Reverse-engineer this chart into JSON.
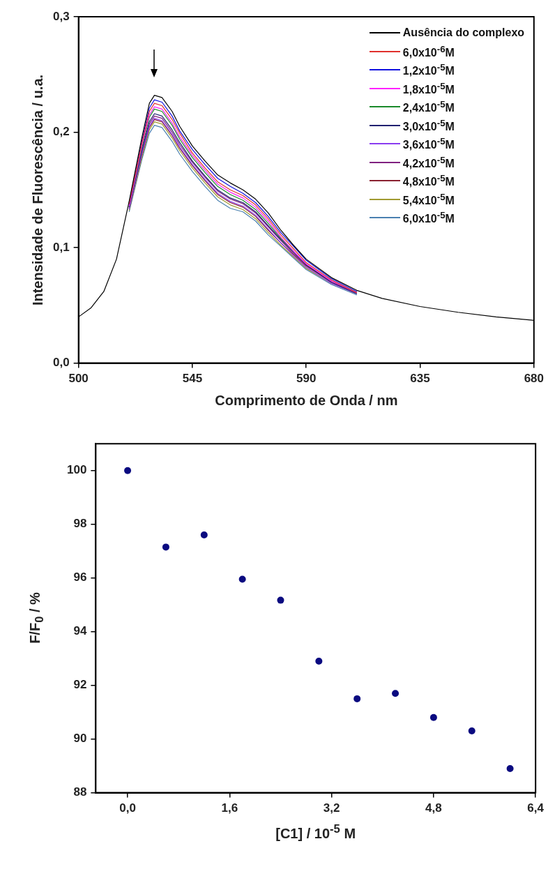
{
  "chart_data": [
    {
      "type": "line",
      "xlabel": "Comprimento de Onda / nm",
      "ylabel": "Intensidade de Fluorescência / u.a.",
      "xlim": [
        500,
        680
      ],
      "xticks": [
        500,
        545,
        590,
        635,
        680
      ],
      "ylim": [
        0,
        0.3
      ],
      "yticks": [
        {
          "value": 0,
          "label": "0,0"
        },
        {
          "value": 0.1,
          "label": "0,1"
        },
        {
          "value": 0.2,
          "label": "0,2"
        },
        {
          "value": 0.3,
          "label": "0,3"
        }
      ],
      "legend": "top right",
      "marker": "none",
      "line_style": "solid",
      "grid": false,
      "x": [
        500,
        505,
        510,
        515,
        520,
        525,
        528,
        530,
        533,
        537,
        540,
        545,
        550,
        555,
        560,
        565,
        570,
        575,
        580,
        585,
        590,
        600,
        610,
        620,
        635,
        650,
        665,
        680
      ],
      "series": [
        {
          "name": "Ausência do complexo",
          "color": "#000000",
          "values": [
            0.04,
            0.048,
            0.062,
            0.09,
            0.14,
            0.195,
            0.225,
            0.232,
            0.23,
            0.218,
            0.205,
            0.188,
            0.175,
            0.163,
            0.156,
            0.15,
            0.142,
            0.13,
            0.115,
            0.102,
            0.09,
            0.074,
            0.063,
            0.056,
            0.049,
            0.044,
            0.04,
            0.037
          ]
        },
        {
          "name": "6,0x10$^{-6}$M",
          "color": "#e0302c",
          "values": [
            null,
            null,
            null,
            null,
            0.138,
            0.19,
            0.218,
            0.225,
            0.223,
            0.211,
            0.199,
            0.182,
            0.169,
            0.157,
            0.15,
            0.145,
            0.137,
            0.125,
            0.111,
            0.099,
            0.087,
            0.072,
            0.061,
            null,
            null,
            null,
            null,
            null
          ]
        },
        {
          "name": "1,2x10$^{-5}$M",
          "color": "#1010e0",
          "values": [
            null,
            null,
            null,
            null,
            0.139,
            0.192,
            0.221,
            0.228,
            0.226,
            0.214,
            0.201,
            0.185,
            0.172,
            0.16,
            0.153,
            0.147,
            0.139,
            0.127,
            0.113,
            0.101,
            0.089,
            0.073,
            0.062,
            null,
            null,
            null,
            null,
            null
          ]
        },
        {
          "name": "1,8x10$^{-5}$M",
          "color": "#ff20ff",
          "values": [
            null,
            null,
            null,
            null,
            0.136,
            0.188,
            0.215,
            0.222,
            0.22,
            0.208,
            0.196,
            0.18,
            0.167,
            0.155,
            0.148,
            0.143,
            0.135,
            0.123,
            0.109,
            0.097,
            0.086,
            0.071,
            0.061,
            null,
            null,
            null,
            null,
            null
          ]
        },
        {
          "name": "2,4x10$^{-5}$M",
          "color": "#1a8a2a",
          "values": [
            null,
            null,
            null,
            null,
            0.136,
            0.186,
            0.213,
            0.22,
            0.218,
            0.206,
            0.194,
            0.178,
            0.165,
            0.153,
            0.146,
            0.141,
            0.133,
            0.121,
            0.108,
            0.097,
            null,
            null,
            null,
            null,
            null,
            null,
            null,
            null
          ]
        },
        {
          "name": "3,0x10$^{-5}$M",
          "color": "#202070",
          "values": [
            null,
            null,
            null,
            null,
            0.135,
            0.184,
            0.209,
            0.216,
            0.214,
            0.202,
            0.191,
            0.175,
            0.162,
            0.15,
            0.143,
            0.139,
            0.131,
            0.119,
            0.107,
            0.096,
            0.085,
            0.07,
            0.06,
            null,
            null,
            null,
            null,
            null
          ]
        },
        {
          "name": "3,6x10$^{-5}$M",
          "color": "#8a3cf0",
          "values": [
            null,
            null,
            null,
            null,
            0.133,
            0.181,
            0.205,
            0.212,
            0.21,
            0.198,
            0.187,
            0.172,
            0.159,
            0.147,
            0.14,
            0.136,
            0.128,
            0.116,
            0.104,
            0.093,
            0.083,
            0.069,
            0.06,
            null,
            null,
            null,
            null,
            null
          ]
        },
        {
          "name": "4,2x10$^{-5}$M",
          "color": "#802080",
          "values": [
            null,
            null,
            null,
            null,
            0.135,
            0.183,
            0.207,
            0.214,
            0.212,
            0.2,
            0.189,
            0.174,
            0.161,
            0.149,
            0.142,
            0.138,
            0.13,
            0.118,
            0.106,
            0.095,
            0.085,
            0.071,
            0.061,
            null,
            null,
            null,
            null,
            null
          ]
        },
        {
          "name": "4,8x10$^{-5}$M",
          "color": "#8a2030",
          "values": [
            null,
            null,
            null,
            null,
            0.134,
            0.18,
            0.204,
            0.211,
            0.209,
            0.197,
            0.186,
            0.171,
            0.158,
            0.146,
            0.139,
            0.135,
            0.127,
            0.115,
            0.104,
            0.094,
            0.084,
            0.07,
            0.061,
            null,
            null,
            null,
            null,
            null
          ]
        },
        {
          "name": "5,4x10$^{-5}$M",
          "color": "#a09a30",
          "values": [
            null,
            null,
            null,
            null,
            0.132,
            0.178,
            0.202,
            0.209,
            0.207,
            0.195,
            0.184,
            0.169,
            0.156,
            0.144,
            0.137,
            0.133,
            0.125,
            0.113,
            0.102,
            0.092,
            0.082,
            0.069,
            0.06,
            null,
            null,
            null,
            null,
            null
          ]
        },
        {
          "name": "6,0x10$^{-5}$M",
          "color": "#4a80b0",
          "values": [
            null,
            null,
            null,
            null,
            0.131,
            0.176,
            0.199,
            0.206,
            0.204,
            0.192,
            0.181,
            0.166,
            0.153,
            0.141,
            0.134,
            0.131,
            0.123,
            0.111,
            0.101,
            0.091,
            0.081,
            0.068,
            0.059,
            null,
            null,
            null,
            null,
            null
          ]
        }
      ]
    },
    {
      "type": "scatter",
      "xlabel": "[C1] / 10$^{-5}$ M",
      "ylabel": "F/F$_{0}$ / %",
      "xlim": [
        -0.5,
        6.4
      ],
      "xticks": [
        {
          "value": 0,
          "label": "0,0"
        },
        {
          "value": 1.6,
          "label": "1,6"
        },
        {
          "value": 3.2,
          "label": "3,2"
        },
        {
          "value": 4.8,
          "label": "4,8"
        },
        {
          "value": 6.4,
          "label": "6,4"
        }
      ],
      "ylim": [
        88,
        101
      ],
      "yticks": [
        88,
        90,
        92,
        94,
        96,
        98,
        100
      ],
      "marker": "circle",
      "grid": false,
      "x": [
        0,
        0.6,
        1.2,
        1.8,
        2.4,
        3.0,
        3.6,
        4.2,
        4.8,
        5.4,
        6.0
      ],
      "series": [
        {
          "color": "#0a0a80",
          "values": [
            100,
            97.15,
            97.6,
            95.95,
            95.17,
            92.9,
            91.5,
            91.7,
            90.8,
            90.3,
            88.9
          ]
        }
      ]
    }
  ]
}
